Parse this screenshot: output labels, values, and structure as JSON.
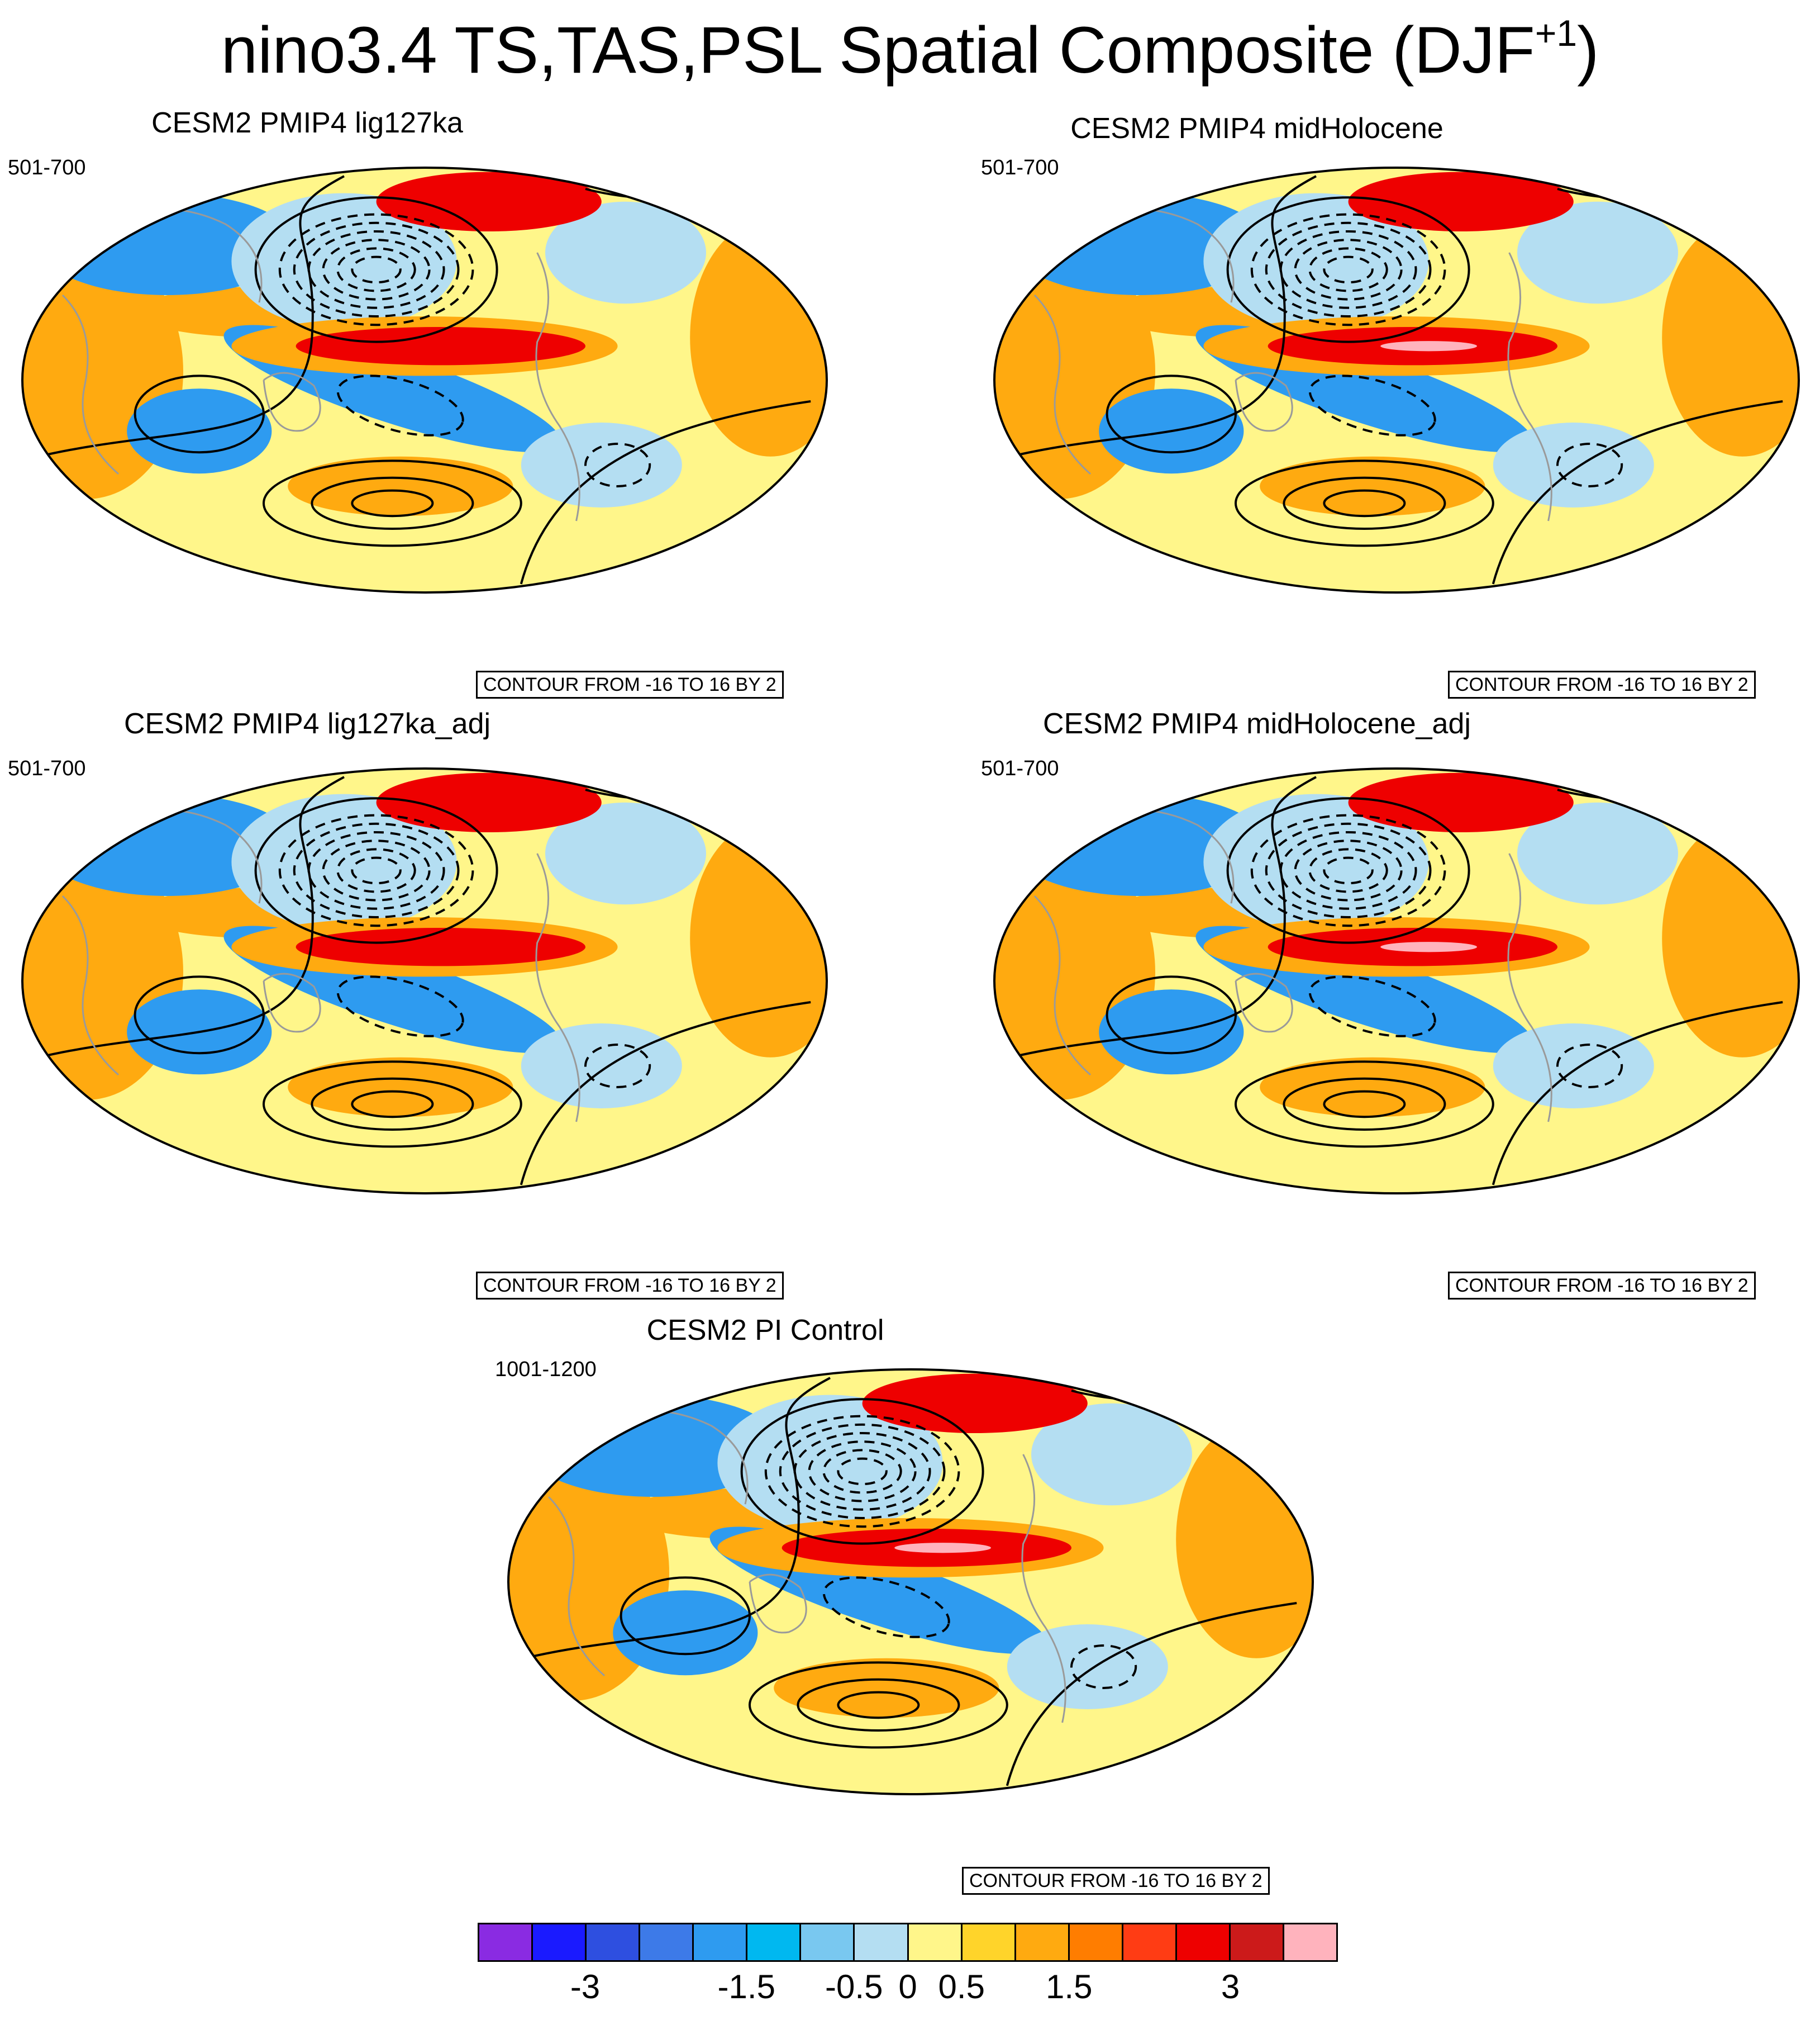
{
  "figure": {
    "title_main": "nino3.4 TS,TAS,PSL Spatial Composite (DJF",
    "title_sup": "+1",
    "title_end": ")"
  },
  "panels": [
    {
      "id": "p1",
      "title": "CESM2 PMIP4 lig127ka",
      "years": "501-700",
      "contour_note": "CONTOUR FROM -16 TO 16 BY 2"
    },
    {
      "id": "p2",
      "title": "CESM2 PMIP4 midHolocene",
      "years": "501-700",
      "contour_note": "CONTOUR FROM -16 TO 16 BY 2"
    },
    {
      "id": "p3",
      "title": "CESM2 PMIP4 lig127ka_adj",
      "years": "501-700",
      "contour_note": "CONTOUR FROM -16 TO 16 BY 2"
    },
    {
      "id": "p4",
      "title": "CESM2 PMIP4 midHolocene_adj",
      "years": "501-700",
      "contour_note": "CONTOUR FROM -16 TO 16 BY 2"
    },
    {
      "id": "p5",
      "title": "CESM2 PI Control",
      "years": "1001-1200",
      "contour_note": "CONTOUR FROM -16 TO 16 BY 2"
    }
  ],
  "colorbar": {
    "colors": [
      "#8a2be2",
      "#1a1aff",
      "#2e4fe0",
      "#3d7ae8",
      "#2e9bf0",
      "#00b8f0",
      "#79c8f0",
      "#b4def2",
      "#fff68a",
      "#ffd42a",
      "#ffaa10",
      "#ff7d00",
      "#ff3c14",
      "#ee0000",
      "#cc1a1a",
      "#ffb3bd"
    ],
    "tick_labels": [
      "-3",
      "-1.5",
      "-0.5",
      "0",
      "0.5",
      "1.5",
      "3"
    ]
  },
  "palette": {
    "ocean_light": "#b4def2",
    "ocean_blue": "#2e9bf0",
    "warm_yellow": "#fff68a",
    "warm_orange": "#ffaa10",
    "warm_red": "#ee0000",
    "coast": "#9a9a9a"
  }
}
